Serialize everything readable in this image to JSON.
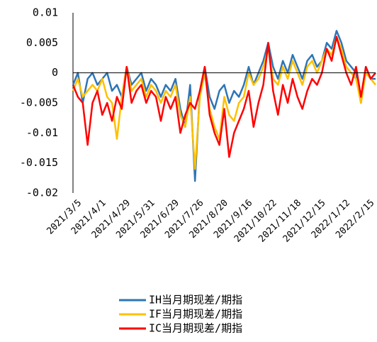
{
  "chart_data": {
    "type": "line",
    "categories": [
      "2021/3/5",
      null,
      null,
      null,
      null,
      "2021/4/1",
      null,
      null,
      null,
      null,
      "2021/4/29",
      null,
      null,
      null,
      null,
      "2021/5/31",
      null,
      null,
      null,
      null,
      "2021/6/29",
      null,
      null,
      null,
      null,
      "2021/7/26",
      null,
      null,
      null,
      null,
      "2021/8/20",
      null,
      null,
      null,
      null,
      "2021/9/16",
      null,
      null,
      null,
      null,
      "2021/10/22",
      null,
      null,
      null,
      null,
      "2021/11/18",
      null,
      null,
      null,
      null,
      "2021/12/15",
      null,
      null,
      null,
      null,
      "2022/1/12",
      null,
      null,
      null,
      null,
      "2022/2/15",
      null,
      null
    ],
    "series": [
      {
        "name": "IH当月期现差/期指",
        "color": "#2e75b6",
        "values": [
          -0.002,
          0,
          -0.005,
          -0.001,
          0,
          -0.002,
          -0.001,
          0,
          -0.003,
          -0.002,
          -0.004,
          0.001,
          -0.002,
          -0.001,
          0,
          -0.003,
          -0.001,
          -0.002,
          -0.004,
          -0.002,
          -0.003,
          -0.001,
          -0.006,
          -0.009,
          -0.002,
          -0.018,
          -0.003,
          0.001,
          -0.004,
          -0.006,
          -0.003,
          -0.002,
          -0.005,
          -0.003,
          -0.004,
          -0.002,
          0.001,
          -0.002,
          0,
          0.002,
          0.005,
          0.001,
          -0.001,
          0.002,
          0,
          0.003,
          0.001,
          -0.001,
          0.002,
          0.003,
          0.001,
          0.002,
          0.005,
          0.004,
          0.007,
          0.005,
          0.002,
          0.001,
          0,
          -0.005,
          0.001,
          -0.001,
          -0.001
        ]
      },
      {
        "name": "IF当月期现差/期指",
        "color": "#ffc000",
        "values": [
          -0.003,
          -0.001,
          -0.004,
          -0.003,
          -0.002,
          -0.003,
          -0.001,
          -0.004,
          -0.005,
          -0.011,
          -0.004,
          0.001,
          -0.003,
          -0.002,
          -0.001,
          -0.004,
          -0.002,
          -0.003,
          -0.005,
          -0.003,
          -0.004,
          -0.002,
          -0.007,
          -0.009,
          -0.004,
          -0.016,
          -0.004,
          0,
          -0.006,
          -0.009,
          -0.011,
          -0.004,
          -0.007,
          -0.008,
          -0.005,
          -0.004,
          0,
          -0.002,
          -0.001,
          0.001,
          0.004,
          -0.001,
          -0.002,
          0.001,
          -0.001,
          0.002,
          0,
          -0.002,
          0.001,
          0.002,
          0,
          0.002,
          0.004,
          0.003,
          0.006,
          0.004,
          0.001,
          0,
          -0.001,
          -0.005,
          0,
          -0.001,
          -0.002
        ]
      },
      {
        "name": "IC当月期现差/期指",
        "color": "#ff0000",
        "values": [
          -0.002,
          -0.004,
          -0.005,
          -0.012,
          -0.005,
          -0.003,
          -0.007,
          -0.005,
          -0.008,
          -0.004,
          -0.006,
          0.001,
          -0.005,
          -0.003,
          -0.002,
          -0.005,
          -0.003,
          -0.004,
          -0.008,
          -0.004,
          -0.006,
          -0.004,
          -0.01,
          -0.007,
          -0.005,
          -0.006,
          -0.003,
          0.001,
          -0.007,
          -0.01,
          -0.012,
          -0.006,
          -0.014,
          -0.01,
          -0.008,
          -0.006,
          -0.003,
          -0.009,
          -0.005,
          -0.002,
          0.005,
          -0.003,
          -0.007,
          -0.002,
          -0.005,
          -0.001,
          -0.004,
          -0.006,
          -0.003,
          -0.001,
          -0.002,
          0,
          0.004,
          0.002,
          0.006,
          0.003,
          0,
          -0.002,
          0.001,
          -0.004,
          0.001,
          -0.001,
          0
        ]
      }
    ],
    "ylim": [
      -0.02,
      0.01
    ],
    "yticks": [
      0.01,
      0.005,
      0,
      -0.005,
      -0.01,
      -0.015,
      -0.02
    ],
    "grid": false,
    "legend": "bottom"
  }
}
